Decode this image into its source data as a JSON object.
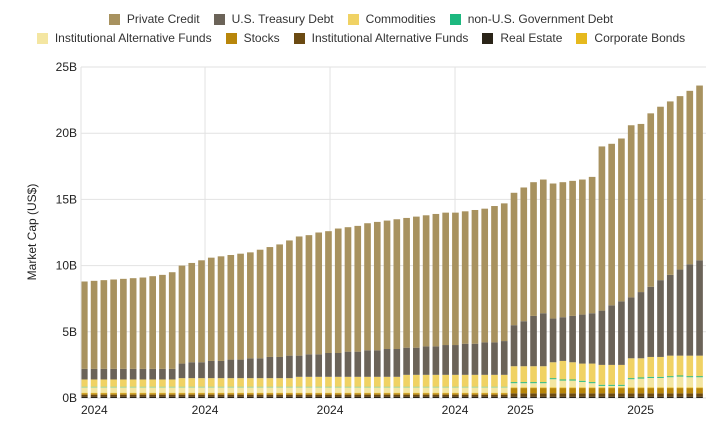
{
  "chart_data": {
    "type": "bar",
    "stacked": true,
    "ylabel": "Market Cap (US$)",
    "xlabel": "",
    "ylim": [
      0,
      25
    ],
    "y_ticks": [
      "0B",
      "5B",
      "10B",
      "15B",
      "20B",
      "25B"
    ],
    "y_tick_values": [
      0,
      5,
      10,
      15,
      20,
      25
    ],
    "x_ticks": [
      {
        "label": "2024",
        "bar_index": 0
      },
      {
        "label": "2024",
        "bar_index": 12.7
      },
      {
        "label": "2024",
        "bar_index": 25.5
      },
      {
        "label": "2024",
        "bar_index": 38.3
      },
      {
        "label": "2025",
        "bar_index": 45
      },
      {
        "label": "2025",
        "bar_index": 57.3
      }
    ],
    "grid": true,
    "legend_placement": "top",
    "legend_rows": [
      [
        "Private Credit",
        "U.S. Treasury Debt",
        "Commodities",
        "non-U.S. Government Debt"
      ],
      [
        "Institutional Alternative Funds",
        "Stocks",
        "Institutional Alternative Funds ",
        "Real Estate",
        "Corporate Bonds"
      ]
    ],
    "series": [
      {
        "name": "Real Estate",
        "color": "#2a2418",
        "values": [
          0.1,
          0.1,
          0.1,
          0.1,
          0.1,
          0.1,
          0.1,
          0.1,
          0.1,
          0.1,
          0.1,
          0.1,
          0.1,
          0.1,
          0.1,
          0.1,
          0.1,
          0.1,
          0.1,
          0.1,
          0.1,
          0.1,
          0.1,
          0.1,
          0.1,
          0.1,
          0.1,
          0.1,
          0.1,
          0.1,
          0.1,
          0.1,
          0.1,
          0.1,
          0.1,
          0.1,
          0.1,
          0.1,
          0.1,
          0.1,
          0.1,
          0.1,
          0.1,
          0.1,
          0.1,
          0.1,
          0.1,
          0.1,
          0.1,
          0.1,
          0.1,
          0.1,
          0.1,
          0.1,
          0.1,
          0.1,
          0.1,
          0.1,
          0.1,
          0.1,
          0.1,
          0.1,
          0.1,
          0.1
        ]
      },
      {
        "name": "Institutional Alternative Funds ",
        "color": "#6b4a12",
        "values": [
          0.15,
          0.15,
          0.15,
          0.15,
          0.15,
          0.15,
          0.15,
          0.15,
          0.15,
          0.15,
          0.15,
          0.15,
          0.15,
          0.15,
          0.15,
          0.15,
          0.15,
          0.15,
          0.15,
          0.15,
          0.15,
          0.15,
          0.15,
          0.15,
          0.15,
          0.15,
          0.15,
          0.15,
          0.15,
          0.15,
          0.15,
          0.15,
          0.15,
          0.15,
          0.15,
          0.15,
          0.15,
          0.15,
          0.15,
          0.15,
          0.15,
          0.15,
          0.15,
          0.15,
          0.25,
          0.25,
          0.25,
          0.25,
          0.25,
          0.25,
          0.25,
          0.25,
          0.25,
          0.25,
          0.25,
          0.25,
          0.25,
          0.25,
          0.25,
          0.25,
          0.25,
          0.25,
          0.25,
          0.25
        ]
      },
      {
        "name": "Stocks",
        "color": "#b8860b",
        "values": [
          0.1,
          0.1,
          0.1,
          0.1,
          0.1,
          0.1,
          0.1,
          0.1,
          0.1,
          0.1,
          0.1,
          0.1,
          0.1,
          0.1,
          0.1,
          0.1,
          0.1,
          0.1,
          0.1,
          0.1,
          0.1,
          0.1,
          0.1,
          0.1,
          0.1,
          0.1,
          0.1,
          0.1,
          0.1,
          0.1,
          0.1,
          0.1,
          0.1,
          0.1,
          0.1,
          0.1,
          0.1,
          0.1,
          0.1,
          0.1,
          0.1,
          0.1,
          0.1,
          0.1,
          0.4,
          0.4,
          0.4,
          0.4,
          0.4,
          0.4,
          0.4,
          0.4,
          0.4,
          0.4,
          0.4,
          0.4,
          0.4,
          0.4,
          0.4,
          0.4,
          0.4,
          0.4,
          0.4,
          0.4
        ]
      },
      {
        "name": "Corporate Bonds",
        "color": "#e6b91e",
        "values": [
          0.05,
          0.05,
          0.05,
          0.05,
          0.05,
          0.05,
          0.05,
          0.05,
          0.05,
          0.05,
          0.05,
          0.05,
          0.05,
          0.05,
          0.05,
          0.05,
          0.05,
          0.05,
          0.05,
          0.05,
          0.05,
          0.05,
          0.05,
          0.05,
          0.05,
          0.05,
          0.05,
          0.05,
          0.05,
          0.05,
          0.05,
          0.05,
          0.05,
          0.05,
          0.05,
          0.05,
          0.05,
          0.05,
          0.05,
          0.05,
          0.05,
          0.05,
          0.05,
          0.05,
          0.05,
          0.05,
          0.05,
          0.05,
          0.05,
          0.05,
          0.05,
          0.05,
          0.05,
          0.05,
          0.05,
          0.05,
          0.05,
          0.05,
          0.05,
          0.05,
          0.05,
          0.05,
          0.05,
          0.05
        ]
      },
      {
        "name": "Institutional Alternative Funds",
        "color": "#f4e6a2",
        "values": [
          0.41,
          0.41,
          0.41,
          0.41,
          0.41,
          0.41,
          0.41,
          0.41,
          0.41,
          0.41,
          0.41,
          0.41,
          0.41,
          0.41,
          0.41,
          0.41,
          0.41,
          0.41,
          0.41,
          0.41,
          0.41,
          0.41,
          0.41,
          0.41,
          0.41,
          0.41,
          0.41,
          0.41,
          0.41,
          0.41,
          0.41,
          0.41,
          0.41,
          0.41,
          0.41,
          0.41,
          0.41,
          0.41,
          0.41,
          0.41,
          0.41,
          0.41,
          0.41,
          0.41,
          0.32,
          0.32,
          0.32,
          0.32,
          0.62,
          0.52,
          0.52,
          0.42,
          0.32,
          0.12,
          0.12,
          0.12,
          0.62,
          0.67,
          0.72,
          0.72,
          0.77,
          0.82,
          0.77,
          0.77
        ]
      },
      {
        "name": "non-U.S. Government Debt",
        "color": "#1db87f",
        "values": [
          0.04,
          0.04,
          0.04,
          0.04,
          0.04,
          0.04,
          0.04,
          0.04,
          0.04,
          0.04,
          0.04,
          0.04,
          0.04,
          0.04,
          0.04,
          0.04,
          0.04,
          0.04,
          0.04,
          0.04,
          0.04,
          0.04,
          0.04,
          0.04,
          0.04,
          0.04,
          0.04,
          0.04,
          0.04,
          0.04,
          0.04,
          0.04,
          0.04,
          0.04,
          0.04,
          0.04,
          0.04,
          0.04,
          0.04,
          0.04,
          0.04,
          0.04,
          0.04,
          0.04,
          0.08,
          0.08,
          0.08,
          0.08,
          0.08,
          0.08,
          0.08,
          0.08,
          0.08,
          0.08,
          0.08,
          0.08,
          0.08,
          0.08,
          0.08,
          0.08,
          0.08,
          0.08,
          0.08,
          0.08
        ]
      },
      {
        "name": "Commodities",
        "color": "#f0d264",
        "values": [
          0.55,
          0.55,
          0.55,
          0.55,
          0.55,
          0.55,
          0.55,
          0.55,
          0.55,
          0.55,
          0.65,
          0.65,
          0.65,
          0.65,
          0.65,
          0.65,
          0.65,
          0.65,
          0.65,
          0.65,
          0.65,
          0.65,
          0.75,
          0.75,
          0.75,
          0.75,
          0.75,
          0.75,
          0.75,
          0.75,
          0.75,
          0.75,
          0.75,
          0.9,
          0.9,
          0.9,
          0.9,
          0.9,
          0.9,
          0.9,
          0.9,
          0.9,
          0.9,
          0.9,
          1.2,
          1.2,
          1.2,
          1.2,
          1.2,
          1.4,
          1.3,
          1.3,
          1.4,
          1.5,
          1.5,
          1.5,
          1.5,
          1.45,
          1.5,
          1.5,
          1.55,
          1.5,
          1.55,
          1.55
        ]
      },
      {
        "name": "U.S. Treasury Debt",
        "color": "#6b6358",
        "values": [
          0.8,
          0.8,
          0.8,
          0.8,
          0.8,
          0.8,
          0.8,
          0.8,
          0.8,
          0.8,
          1.1,
          1.2,
          1.2,
          1.3,
          1.3,
          1.4,
          1.4,
          1.5,
          1.5,
          1.6,
          1.6,
          1.7,
          1.6,
          1.7,
          1.7,
          1.8,
          1.8,
          1.9,
          1.9,
          2.0,
          2.0,
          2.1,
          2.1,
          2.05,
          2.05,
          2.15,
          2.15,
          2.25,
          2.25,
          2.35,
          2.35,
          2.45,
          2.45,
          2.55,
          3.1,
          3.4,
          3.8,
          4.0,
          3.3,
          3.3,
          3.5,
          3.7,
          3.8,
          4.1,
          4.5,
          4.8,
          4.6,
          5.0,
          5.3,
          5.8,
          6.1,
          6.5,
          6.9,
          7.2
        ]
      },
      {
        "name": "Private Credit",
        "color": "#a8925f",
        "values": [
          6.6,
          6.65,
          6.7,
          6.75,
          6.8,
          6.85,
          6.9,
          7.0,
          7.1,
          7.3,
          7.4,
          7.5,
          7.7,
          7.8,
          7.9,
          7.9,
          8.0,
          8.0,
          8.2,
          8.3,
          8.5,
          8.7,
          9.0,
          9.0,
          9.2,
          9.2,
          9.4,
          9.4,
          9.5,
          9.6,
          9.7,
          9.7,
          9.8,
          9.8,
          9.9,
          9.9,
          10.0,
          10.0,
          10.0,
          10.0,
          10.1,
          10.1,
          10.3,
          10.4,
          10.0,
          10.1,
          10.1,
          10.1,
          10.2,
          10.2,
          10.2,
          10.2,
          10.3,
          12.4,
          12.2,
          12.3,
          13.0,
          12.7,
          13.1,
          13.1,
          13.1,
          13.1,
          13.1,
          13.2
        ]
      }
    ]
  }
}
